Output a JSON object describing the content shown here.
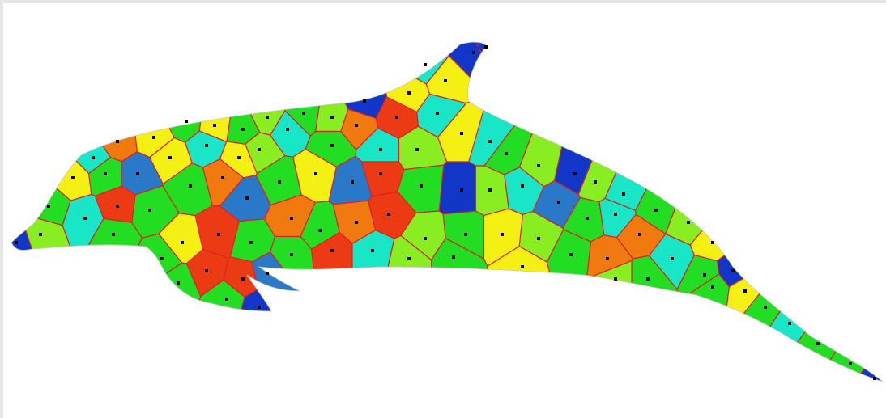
{
  "scene": {
    "subject": "dolphin-voronoi-mesh",
    "palette": {
      "blue": "#1236c8",
      "steel-blue": "#2a78c8",
      "cyan": "#1cd6c0",
      "aqua": "#19e6c6",
      "green": "#22dd22",
      "lime": "#88ee22",
      "yellow": "#f4f014",
      "orange": "#f07a10",
      "red-orange": "#ec3a14",
      "edge": "#e02020",
      "seed": "#000000",
      "background": "#ffffff",
      "border": "#e6e6e6"
    }
  }
}
